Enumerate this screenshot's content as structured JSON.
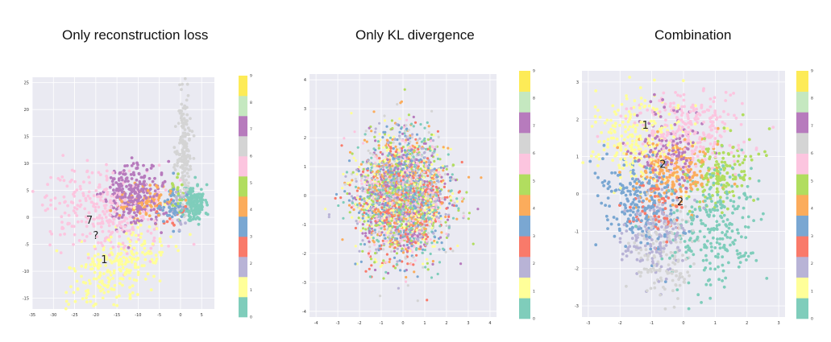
{
  "colormap": [
    "#7fcdbb",
    "#ffff99",
    "#b8b3d6",
    "#f97a6a",
    "#7aa7d2",
    "#fbac5c",
    "#b1dd5f",
    "#fcc5df",
    "#d4d4d4",
    "#b77bbd",
    "#c5e8c0",
    "#fdeb57"
  ],
  "background": "#eaeaf2",
  "chart_data": [
    {
      "type": "scatter",
      "title": "Only reconstruction loss",
      "xlim": [
        -35,
        8
      ],
      "ylim": [
        -17,
        26
      ],
      "x_ticks": [
        "-35",
        "-30",
        "-25",
        "-20",
        "-15",
        "-10",
        "-5",
        "0",
        "5"
      ],
      "y_ticks": [
        "25",
        "20",
        "15",
        "10",
        "5",
        "0",
        "-5",
        "-10",
        "-15"
      ],
      "colorbar_ticks": [
        "0",
        "1",
        "2",
        "3",
        "4",
        "5",
        "6",
        "7",
        "8",
        "9"
      ],
      "annotations": [
        {
          "text": "1",
          "x": -18,
          "y": -8.5
        },
        {
          "text": "7",
          "x": -21.5,
          "y": -1.2
        },
        {
          "text": "?",
          "x": -20,
          "y": -4
        }
      ],
      "clusters": [
        {
          "label": 0,
          "cx": 3.2,
          "cy": 2.5,
          "sx": 1.3,
          "sy": 1.8,
          "n": 170
        },
        {
          "label": 1,
          "cx": -15,
          "cy": -9,
          "sx": 6.5,
          "sy": 3,
          "n": 260,
          "tilt": 0.45
        },
        {
          "label": 2,
          "cx": -1,
          "cy": 2,
          "sx": 1.5,
          "sy": 2,
          "n": 25
        },
        {
          "label": 3,
          "cx": -3,
          "cy": 1,
          "sx": 1.5,
          "sy": 1.5,
          "n": 15
        },
        {
          "label": 4,
          "cx": -2,
          "cy": 2,
          "sx": 1.5,
          "sy": 2,
          "n": 50
        },
        {
          "label": 5,
          "cx": -8,
          "cy": 3,
          "sx": 3,
          "sy": 1.5,
          "n": 90
        },
        {
          "label": 6,
          "cx": -1,
          "cy": 4,
          "sx": 0.8,
          "sy": 2,
          "n": 25
        },
        {
          "label": 7,
          "cx": -18,
          "cy": 1.5,
          "sx": 7,
          "sy": 4,
          "n": 300
        },
        {
          "label": 8,
          "cx": 0.8,
          "cy": 12,
          "sx": 1,
          "sy": 5,
          "n": 170
        },
        {
          "label": 9,
          "cx": -11,
          "cy": 4,
          "sx": 3,
          "sy": 3,
          "n": 280
        }
      ]
    },
    {
      "type": "scatter",
      "title": "Only KL divergence",
      "xlim": [
        -4.3,
        4.3
      ],
      "ylim": [
        -4.2,
        4.2
      ],
      "x_ticks": [
        "-4",
        "-3",
        "-2",
        "-1",
        "0",
        "1",
        "2",
        "3",
        "4"
      ],
      "y_ticks": [
        "4",
        "3",
        "2",
        "1",
        "0",
        "-1",
        "-2",
        "-3",
        "-4"
      ],
      "colorbar_ticks": [
        "0",
        "1",
        "2",
        "3",
        "4",
        "5",
        "6",
        "7",
        "8",
        "9"
      ],
      "clusters": [
        {
          "label": 0,
          "cx": 0,
          "cy": 0,
          "sx": 1,
          "sy": 1,
          "n": 300
        },
        {
          "label": 1,
          "cx": 0,
          "cy": 0,
          "sx": 1,
          "sy": 1,
          "n": 300
        },
        {
          "label": 2,
          "cx": 0,
          "cy": 0,
          "sx": 1,
          "sy": 1,
          "n": 300
        },
        {
          "label": 3,
          "cx": 0,
          "cy": 0,
          "sx": 1,
          "sy": 1,
          "n": 300
        },
        {
          "label": 4,
          "cx": 0,
          "cy": 0,
          "sx": 1,
          "sy": 1,
          "n": 300
        },
        {
          "label": 5,
          "cx": 0,
          "cy": 0,
          "sx": 1,
          "sy": 1,
          "n": 300
        },
        {
          "label": 6,
          "cx": 0,
          "cy": 0,
          "sx": 1,
          "sy": 1,
          "n": 300
        },
        {
          "label": 7,
          "cx": 0,
          "cy": 0,
          "sx": 1,
          "sy": 1,
          "n": 300
        },
        {
          "label": 8,
          "cx": 0,
          "cy": 0,
          "sx": 1,
          "sy": 1,
          "n": 300
        },
        {
          "label": 9,
          "cx": 0,
          "cy": 0,
          "sx": 1,
          "sy": 1,
          "n": 300
        }
      ]
    },
    {
      "type": "scatter",
      "title": "Combination",
      "xlim": [
        -3.2,
        3.2
      ],
      "ylim": [
        -3.3,
        3.3
      ],
      "x_ticks": [
        "-3",
        "-2",
        "-1",
        "0",
        "1",
        "2",
        "3"
      ],
      "y_ticks": [
        "3",
        "2",
        "1",
        "0",
        "-1",
        "-2",
        "-3"
      ],
      "colorbar_ticks": [
        "0",
        "1",
        "2",
        "3",
        "4",
        "5",
        "6",
        "7",
        "8",
        "9"
      ],
      "annotations": [
        {
          "text": "1",
          "x": -1.2,
          "y": 1.75
        },
        {
          "text": "2",
          "x": -0.65,
          "y": 0.7
        },
        {
          "text": "2",
          "x": -0.1,
          "y": -0.3
        }
      ],
      "clusters": [
        {
          "label": 0,
          "cx": 1.0,
          "cy": -0.9,
          "sx": 0.7,
          "sy": 0.8,
          "n": 260
        },
        {
          "label": 1,
          "cx": -1.5,
          "cy": 1.5,
          "sx": 0.8,
          "sy": 0.6,
          "n": 240
        },
        {
          "label": 2,
          "cx": -0.9,
          "cy": -1.0,
          "sx": 0.5,
          "sy": 0.6,
          "n": 150
        },
        {
          "label": 3,
          "cx": -0.8,
          "cy": -0.3,
          "sx": 0.4,
          "sy": 0.4,
          "n": 60
        },
        {
          "label": 4,
          "cx": -1.4,
          "cy": -0.2,
          "sx": 0.6,
          "sy": 0.6,
          "n": 230
        },
        {
          "label": 5,
          "cx": -0.3,
          "cy": 0.6,
          "sx": 0.6,
          "sy": 0.5,
          "n": 200
        },
        {
          "label": 6,
          "cx": 1.2,
          "cy": 0.6,
          "sx": 0.6,
          "sy": 0.4,
          "n": 140,
          "tilt": 0.7
        },
        {
          "label": 7,
          "cx": 0.3,
          "cy": 1.7,
          "sx": 0.8,
          "sy": 0.5,
          "n": 250
        },
        {
          "label": 8,
          "cx": -0.6,
          "cy": -1.7,
          "sx": 0.5,
          "sy": 0.6,
          "n": 150
        },
        {
          "label": 9,
          "cx": -0.5,
          "cy": 1.3,
          "sx": 0.5,
          "sy": 0.5,
          "n": 120
        }
      ]
    }
  ]
}
